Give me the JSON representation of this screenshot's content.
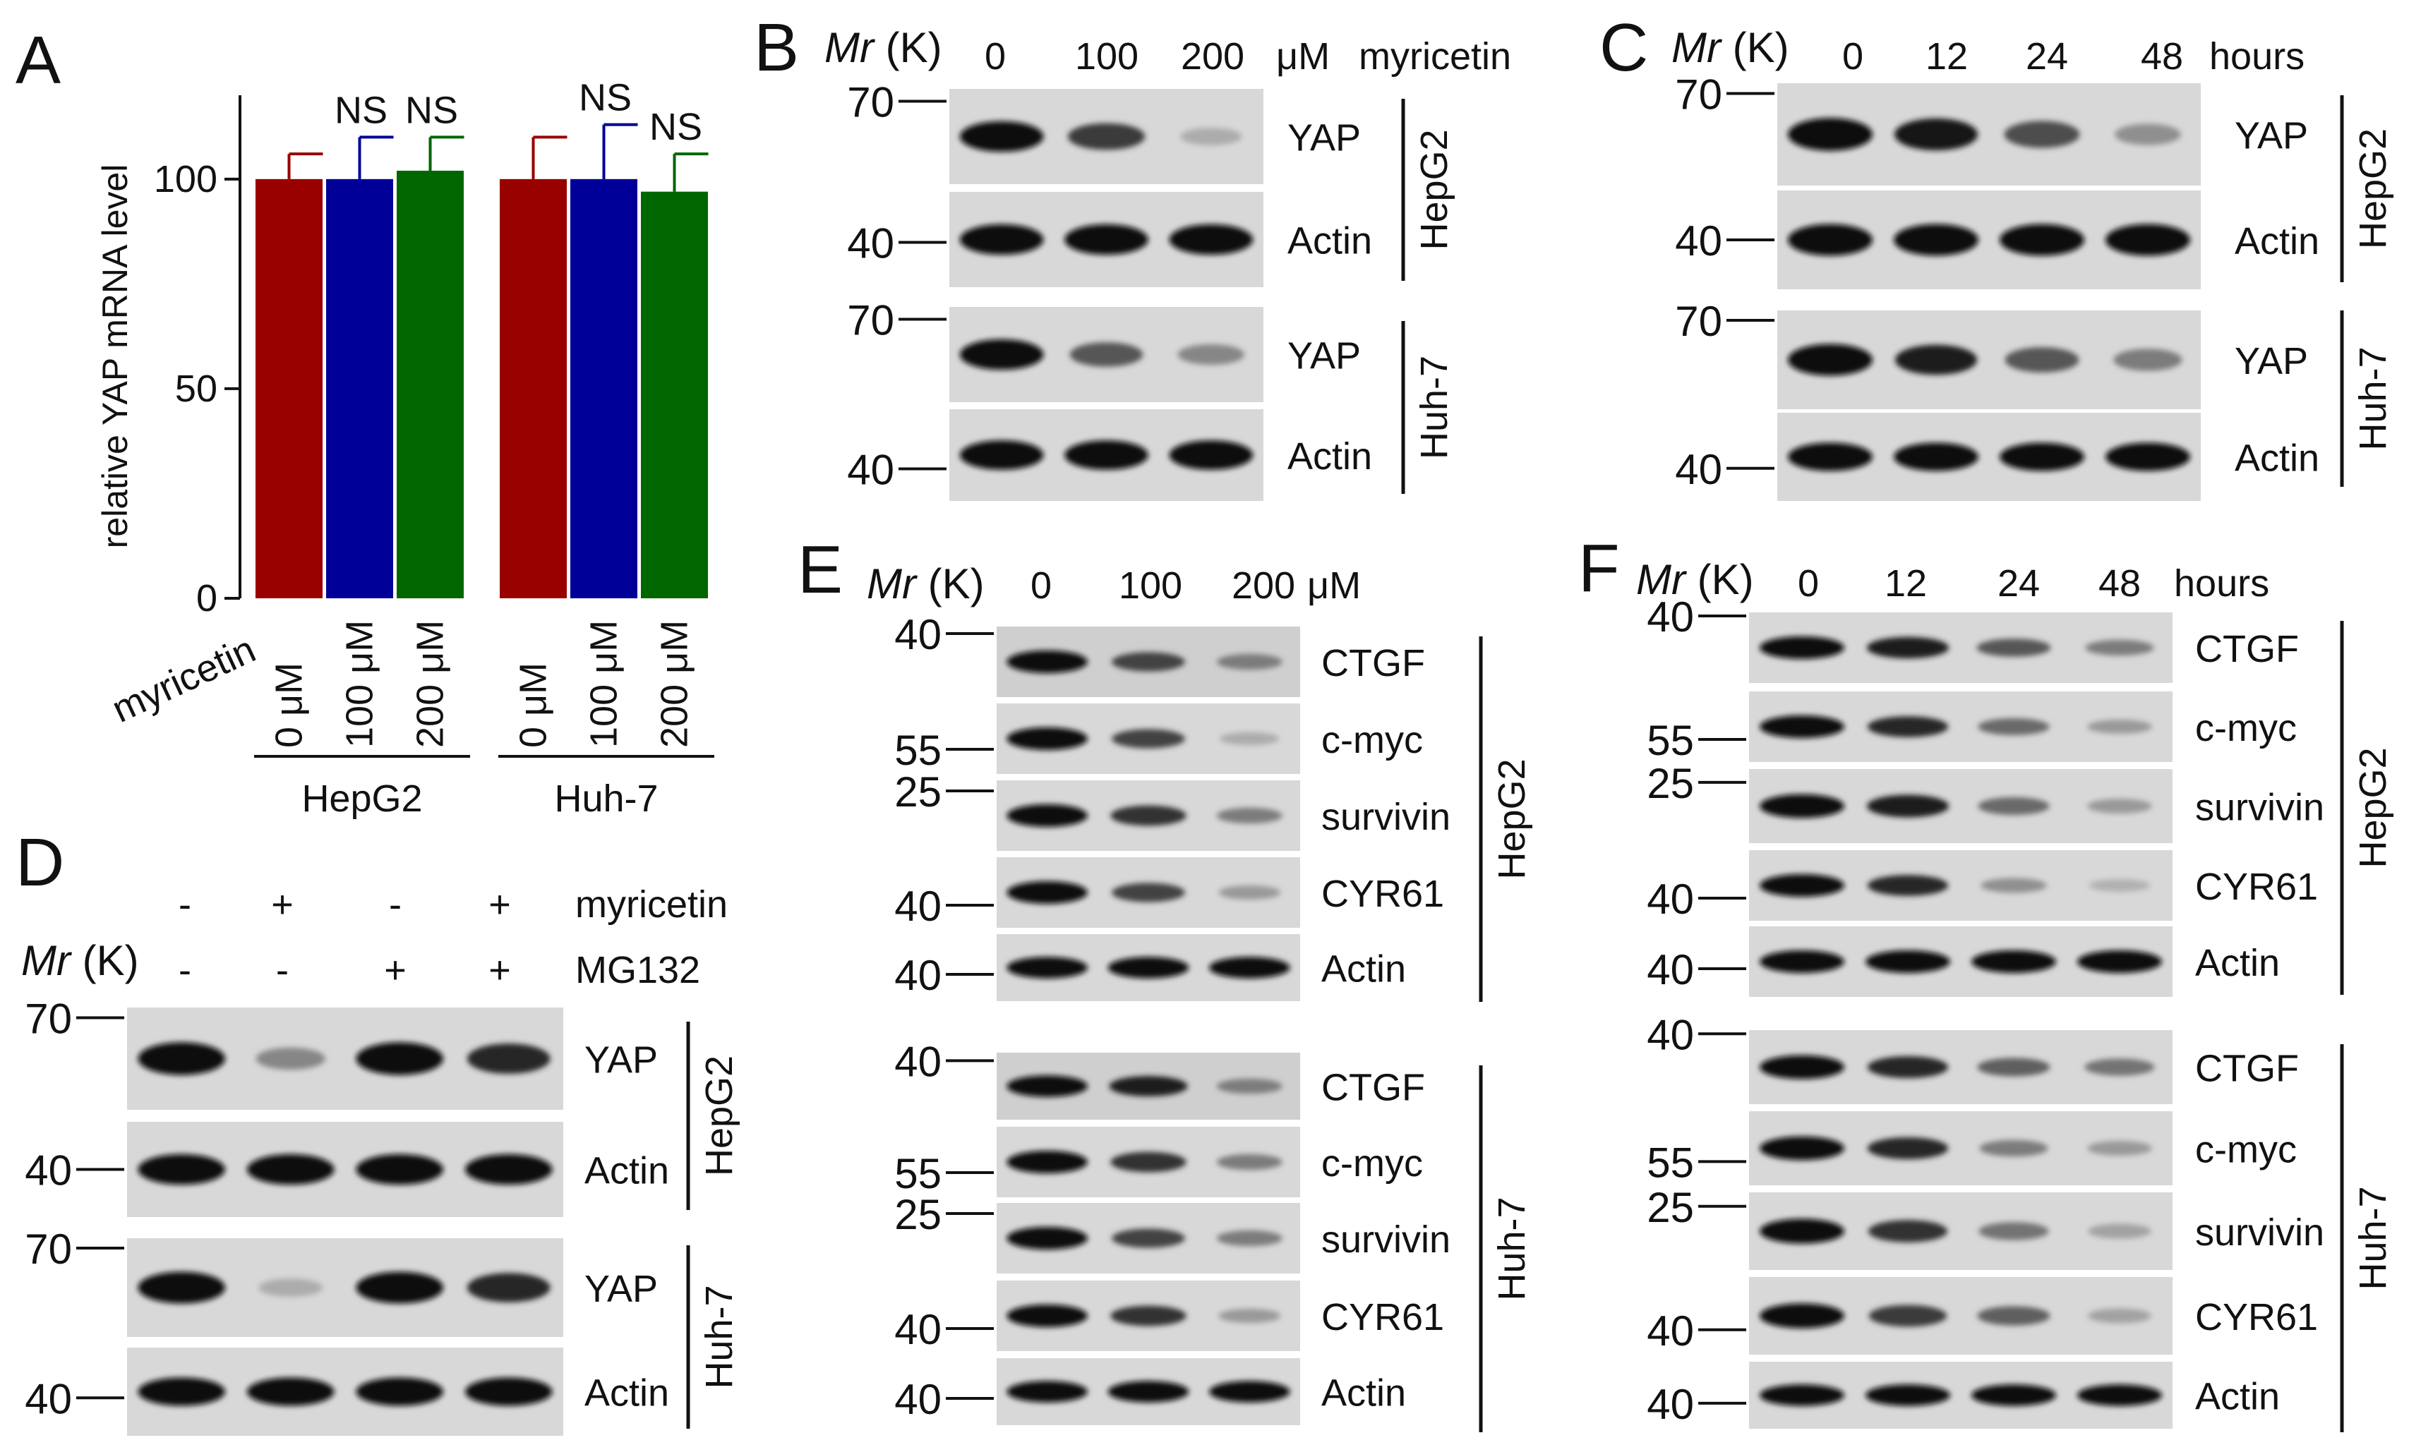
{
  "panels": {
    "A": {
      "letter": "A",
      "chart_data": {
        "type": "bar",
        "ylabel": "relative YAP mRNA level",
        "ylim": [
          0,
          120
        ],
        "yticks": [
          0,
          50,
          100
        ],
        "row_label": "myricetin",
        "groups": [
          {
            "name": "HepG2",
            "bars": [
              {
                "label": "0 μM",
                "value": 100,
                "error": 6,
                "color": "#990000",
                "sig": ""
              },
              {
                "label": "100 μM",
                "value": 100,
                "error": 10,
                "color": "#000099",
                "sig": "NS"
              },
              {
                "label": "200 μM",
                "value": 102,
                "error": 8,
                "color": "#006600",
                "sig": "NS"
              }
            ]
          },
          {
            "name": "Huh-7",
            "bars": [
              {
                "label": "0 μM",
                "value": 100,
                "error": 10,
                "color": "#990000",
                "sig": ""
              },
              {
                "label": "100 μM",
                "value": 100,
                "error": 13,
                "color": "#000099",
                "sig": "NS"
              },
              {
                "label": "200 μM",
                "value": 97,
                "error": 9,
                "color": "#006600",
                "sig": "NS"
              }
            ]
          }
        ]
      }
    },
    "B": {
      "letter": "B",
      "mr": "Mr",
      "mr_unit": "(K)",
      "conditions": [
        "0",
        "100",
        "200"
      ],
      "unit": "μM",
      "treatment": "myricetin",
      "markers": [
        "70",
        "40",
        "70",
        "40"
      ],
      "proteins": [
        "YAP",
        "Actin",
        "YAP",
        "Actin"
      ],
      "cells": [
        "HepG2",
        "Huh-7"
      ]
    },
    "C": {
      "letter": "C",
      "mr": "Mr",
      "mr_unit": "(K)",
      "conditions": [
        "0",
        "12",
        "24",
        "48"
      ],
      "unit": "hours",
      "markers": [
        "70",
        "40",
        "70",
        "40"
      ],
      "proteins": [
        "YAP",
        "Actin",
        "YAP",
        "Actin"
      ],
      "cells": [
        "HepG2",
        "Huh-7"
      ]
    },
    "D": {
      "letter": "D",
      "mr": "Mr",
      "mr_unit": "(K)",
      "row1": [
        "-",
        "+",
        "-",
        "+"
      ],
      "row1_label": "myricetin",
      "row2": [
        "-",
        "-",
        "+",
        "+"
      ],
      "row2_label": "MG132",
      "markers": [
        "70",
        "40",
        "70",
        "40"
      ],
      "proteins": [
        "YAP",
        "Actin",
        "YAP",
        "Actin"
      ],
      "cells": [
        "HepG2",
        "Huh-7"
      ]
    },
    "E": {
      "letter": "E",
      "mr": "Mr",
      "mr_unit": "(K)",
      "conditions": [
        "0",
        "100",
        "200"
      ],
      "unit": "μM",
      "markers": [
        "40",
        "55",
        "25",
        "40",
        "40",
        "40",
        "55",
        "25",
        "40",
        "40"
      ],
      "proteins": [
        "CTGF",
        "c-myc",
        "survivin",
        "CYR61",
        "Actin",
        "CTGF",
        "c-myc",
        "survivin",
        "CYR61",
        "Actin"
      ],
      "cells": [
        "HepG2",
        "Huh-7"
      ]
    },
    "F": {
      "letter": "F",
      "mr": "Mr",
      "mr_unit": "(K)",
      "conditions": [
        "0",
        "12",
        "24",
        "48"
      ],
      "unit": "hours",
      "markers": [
        "40",
        "55",
        "25",
        "40",
        "40",
        "40",
        "55",
        "25",
        "40",
        "40"
      ],
      "proteins": [
        "CTGF",
        "c-myc",
        "survivin",
        "CYR61",
        "Actin",
        "CTGF",
        "c-myc",
        "survivin",
        "CYR61",
        "Actin"
      ],
      "cells": [
        "HepG2",
        "Huh-7"
      ]
    }
  }
}
